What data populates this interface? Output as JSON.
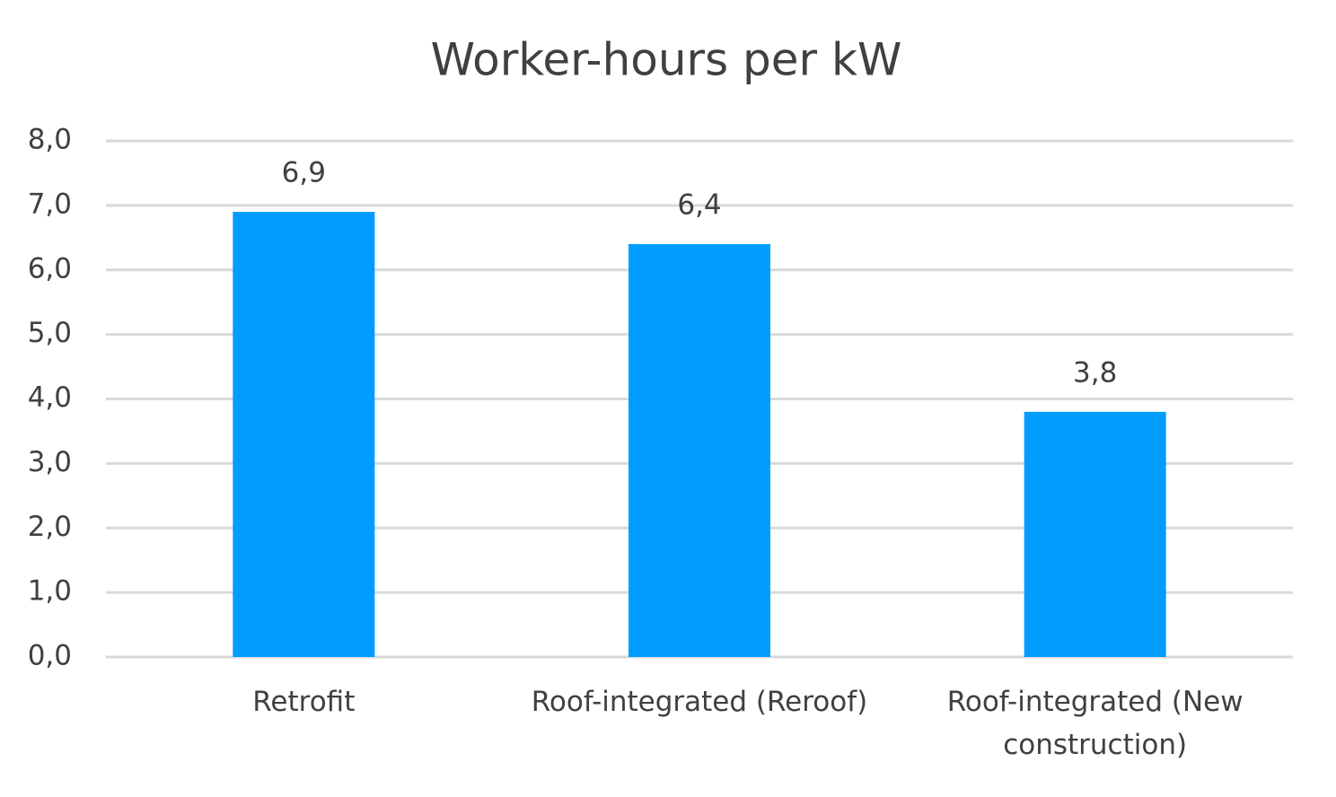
{
  "chart_data": {
    "type": "bar",
    "title": "Worker-hours per kW",
    "categories": [
      "Retrofit",
      "Roof-integrated (Reroof)",
      "Roof-integrated (New construction)"
    ],
    "values": [
      6.9,
      6.4,
      3.8
    ],
    "value_labels": [
      "6,9",
      "6,4",
      "3,8"
    ],
    "color": "#009dff",
    "ylim": [
      0,
      8
    ],
    "yticks": [
      {
        "value": 0,
        "label": "0,0"
      },
      {
        "value": 1,
        "label": "1,0"
      },
      {
        "value": 2,
        "label": "2,0"
      },
      {
        "value": 3,
        "label": "3,0"
      },
      {
        "value": 4,
        "label": "4,0"
      },
      {
        "value": 5,
        "label": "5,0"
      },
      {
        "value": 6,
        "label": "6,0"
      },
      {
        "value": 7,
        "label": "7,0"
      },
      {
        "value": 8,
        "label": "8,0"
      }
    ],
    "grid": true
  }
}
